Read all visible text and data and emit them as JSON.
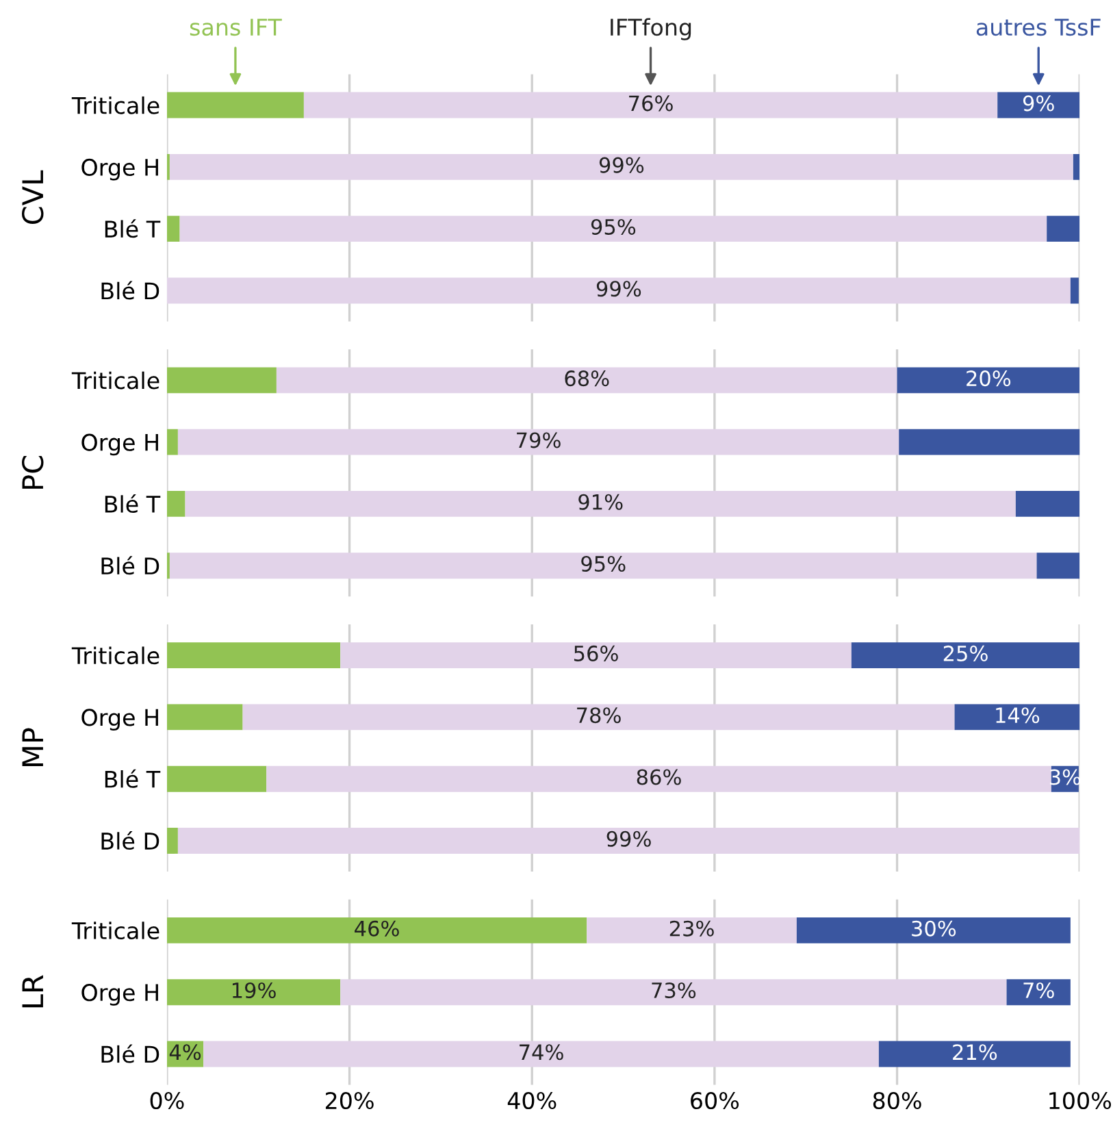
{
  "chart_data": [
    {
      "type": "bar",
      "orientation": "horizontal",
      "stacked": true,
      "ylabel": "CVL",
      "categories": [
        "Triticale",
        "Orge H",
        "Blé T",
        "Blé D"
      ],
      "xlim": [
        0,
        100
      ],
      "xticks": [
        {
          "value": 0,
          "label": null
        },
        {
          "value": 20,
          "label": null
        },
        {
          "value": 40,
          "label": null
        },
        {
          "value": 60,
          "label": null
        },
        {
          "value": 80,
          "label": null
        },
        {
          "value": 100,
          "label": null
        }
      ],
      "grid": "x",
      "tick_labels": "y",
      "series": [
        {
          "name": "sans IFT",
          "color": "#92c353",
          "values": [
            15,
            0.3,
            1.4,
            0
          ],
          "value_labels": [
            null,
            null,
            null,
            null
          ]
        },
        {
          "name": "IFTfong",
          "color": "#e2d3e9",
          "values": [
            76,
            99,
            95,
            99
          ],
          "value_labels": [
            "76%",
            "99%",
            "95%",
            "99%"
          ]
        },
        {
          "name": "autres TssF",
          "color": "#3a56a0",
          "values": [
            9,
            0.7,
            3.6,
            0.9
          ],
          "value_labels": [
            "9%",
            null,
            null,
            null
          ]
        }
      ]
    },
    {
      "type": "bar",
      "orientation": "horizontal",
      "stacked": true,
      "ylabel": "PC",
      "categories": [
        "Triticale",
        "Orge H",
        "Blé T",
        "Blé D"
      ],
      "xlim": [
        0,
        100
      ],
      "xticks": [
        {
          "value": 0,
          "label": null
        },
        {
          "value": 20,
          "label": null
        },
        {
          "value": 40,
          "label": null
        },
        {
          "value": 60,
          "label": null
        },
        {
          "value": 80,
          "label": null
        },
        {
          "value": 100,
          "label": null
        }
      ],
      "grid": "x",
      "tick_labels": "y",
      "series": [
        {
          "color": "#92c353",
          "values": [
            12,
            1.2,
            2,
            0.3
          ],
          "value_labels": [
            null,
            null,
            null,
            null
          ]
        },
        {
          "color": "#e2d3e9",
          "values": [
            68,
            79,
            91,
            95
          ],
          "value_labels": [
            "68%",
            "79%",
            "91%",
            "95%"
          ]
        },
        {
          "color": "#3a56a0",
          "values": [
            20,
            20,
            7,
            4.7
          ],
          "value_labels": [
            "20%",
            null,
            null,
            null
          ]
        }
      ]
    },
    {
      "type": "bar",
      "orientation": "horizontal",
      "stacked": true,
      "ylabel": "MP",
      "categories": [
        "Triticale",
        "Orge H",
        "Blé T",
        "Blé D"
      ],
      "xlim": [
        0,
        100
      ],
      "xticks": [
        {
          "value": 0,
          "label": null
        },
        {
          "value": 20,
          "label": null
        },
        {
          "value": 40,
          "label": null
        },
        {
          "value": 60,
          "label": null
        },
        {
          "value": 80,
          "label": null
        },
        {
          "value": 100,
          "label": null
        }
      ],
      "grid": "x",
      "tick_labels": "y",
      "series": [
        {
          "color": "#92c353",
          "values": [
            19,
            8.3,
            10.9,
            1.2
          ],
          "value_labels": [
            null,
            null,
            null,
            null
          ]
        },
        {
          "color": "#e2d3e9",
          "values": [
            56,
            78,
            86,
            99
          ],
          "value_labels": [
            "56%",
            "78%",
            "86%",
            "99%"
          ]
        },
        {
          "color": "#3a56a0",
          "values": [
            25,
            14,
            3,
            null
          ],
          "value_labels": [
            "25%",
            "14%",
            "3%",
            null
          ]
        }
      ]
    },
    {
      "type": "bar",
      "orientation": "horizontal",
      "stacked": true,
      "ylabel": "LR",
      "categories": [
        "Triticale",
        "Orge H",
        "Blé D"
      ],
      "xlim": [
        0,
        100
      ],
      "xticks": [
        {
          "value": 0,
          "label": "0%"
        },
        {
          "value": 20,
          "label": "20%"
        },
        {
          "value": 40,
          "label": "40%"
        },
        {
          "value": 60,
          "label": "60%"
        },
        {
          "value": 80,
          "label": "80%"
        },
        {
          "value": 100,
          "label": "100%"
        }
      ],
      "grid": "x",
      "series": [
        {
          "color": "#92c353",
          "values": [
            46,
            19,
            4
          ],
          "value_labels": [
            "46%",
            "19%",
            "4%"
          ]
        },
        {
          "color": "#e2d3e9",
          "values": [
            23,
            73,
            74
          ],
          "value_labels": [
            "23%",
            "73%",
            "74%"
          ]
        },
        {
          "color": "#3a56a0",
          "values": [
            30,
            7,
            21
          ],
          "value_labels": [
            "30%",
            "7%",
            "21%"
          ]
        }
      ]
    }
  ]
}
